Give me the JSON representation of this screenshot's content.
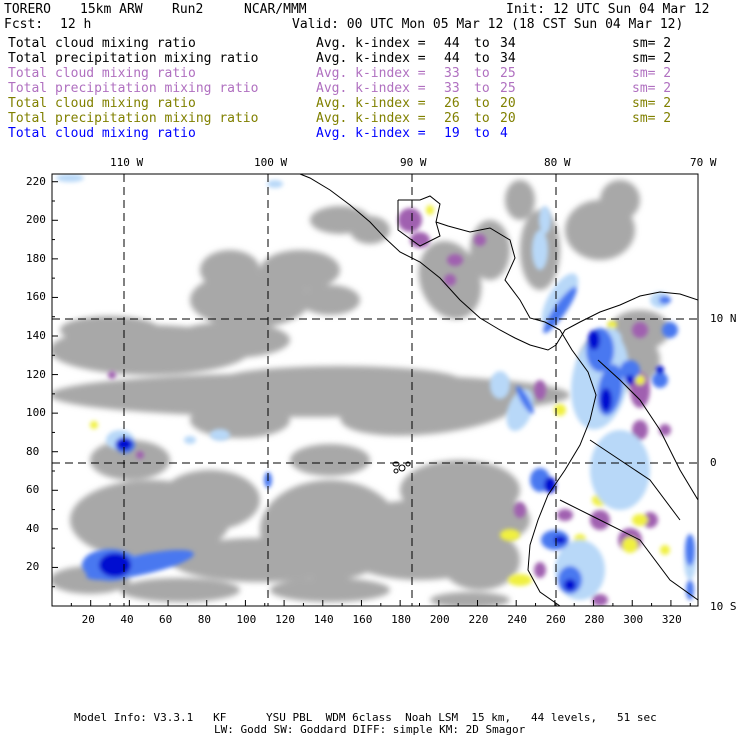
{
  "header": {
    "model": "TORERO",
    "resolution": "15km ARW",
    "run": "Run2",
    "org": "NCAR/MMM",
    "init": "Init: 12 UTC Sun 04 Mar 12",
    "fcst_label": "Fcst:",
    "fcst_value": "12 h",
    "valid": "Valid: 00 UTC Mon 05 Mar 12 (18 CST Sun 04 Mar 12)"
  },
  "fields": [
    {
      "name": "Total cloud mixing ratio",
      "kidx_label": "Avg. k-index =",
      "from": "44",
      "to_word": "to",
      "to": "34",
      "sm": "sm= 2",
      "color": "#000000"
    },
    {
      "name": "Total precipitation mixing ratio",
      "kidx_label": "Avg. k-index =",
      "from": "44",
      "to_word": "to",
      "to": "34",
      "sm": "sm= 2",
      "color": "#000000"
    },
    {
      "name": "Total cloud mixing ratio",
      "kidx_label": "Avg. k-index =",
      "from": "33",
      "to_word": "to",
      "to": "25",
      "sm": "sm= 2",
      "color": "#b070c0"
    },
    {
      "name": "Total precipitation mixing ratio",
      "kidx_label": "Avg. k-index =",
      "from": "33",
      "to_word": "to",
      "to": "25",
      "sm": "sm= 2",
      "color": "#b070c0"
    },
    {
      "name": "Total cloud mixing ratio",
      "kidx_label": "Avg. k-index =",
      "from": "26",
      "to_word": "to",
      "to": "20",
      "sm": "sm= 2",
      "color": "#808000"
    },
    {
      "name": "Total precipitation mixing ratio",
      "kidx_label": "Avg. k-index =",
      "from": "26",
      "to_word": "to",
      "to": "20",
      "sm": "sm= 2",
      "color": "#808000"
    },
    {
      "name": "Total cloud mixing ratio",
      "kidx_label": "Avg. k-index =",
      "from": "19",
      "to_word": "to",
      "to": "4",
      "sm": "",
      "color": "#0000ff"
    }
  ],
  "map": {
    "lon_labels": [
      "110 W",
      "100 W",
      "90 W",
      "80 W",
      "70 W"
    ],
    "lat_labels": [
      "10 N",
      "0",
      "10 S"
    ],
    "x_ticks": [
      "20",
      "40",
      "60",
      "80",
      "100",
      "120",
      "140",
      "160",
      "180",
      "200",
      "220",
      "240",
      "260",
      "280",
      "300",
      "320"
    ],
    "y_ticks": [
      "20",
      "40",
      "60",
      "80",
      "100",
      "120",
      "140",
      "160",
      "180",
      "200",
      "220"
    ],
    "colors": {
      "cloud_gray": "#a8a8a8",
      "purple": "#a060b0",
      "yellow": "#f0f040",
      "light_blue": "#b8d8f8",
      "mid_blue": "#4a78f0",
      "dark_blue": "#0010d0"
    }
  },
  "footer": {
    "line1": "Model Info: V3.3.1   KF      YSU PBL  WDM 6class  Noah LSM  15 km,   44 levels,   51 sec",
    "line2": "LW: Godd SW: Goddard DIFF: simple KM: 2D Smagor"
  }
}
